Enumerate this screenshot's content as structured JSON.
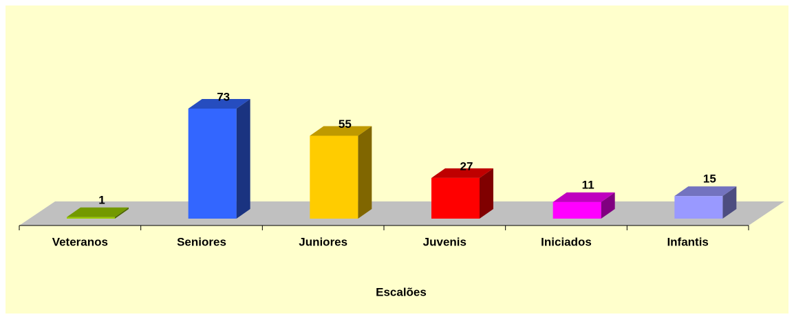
{
  "chart_data": {
    "type": "bar3d",
    "x_label": "Escalões",
    "categories": [
      "Veteranos",
      "Seniores",
      "Juniores",
      "Juvenis",
      "Iniciados",
      "Infantis"
    ],
    "values": [
      1,
      73,
      55,
      27,
      11,
      15
    ],
    "colors": [
      "#99cc00",
      "#3366ff",
      "#ffcc00",
      "#ff0000",
      "#ff00ff",
      "#9999ff"
    ]
  }
}
